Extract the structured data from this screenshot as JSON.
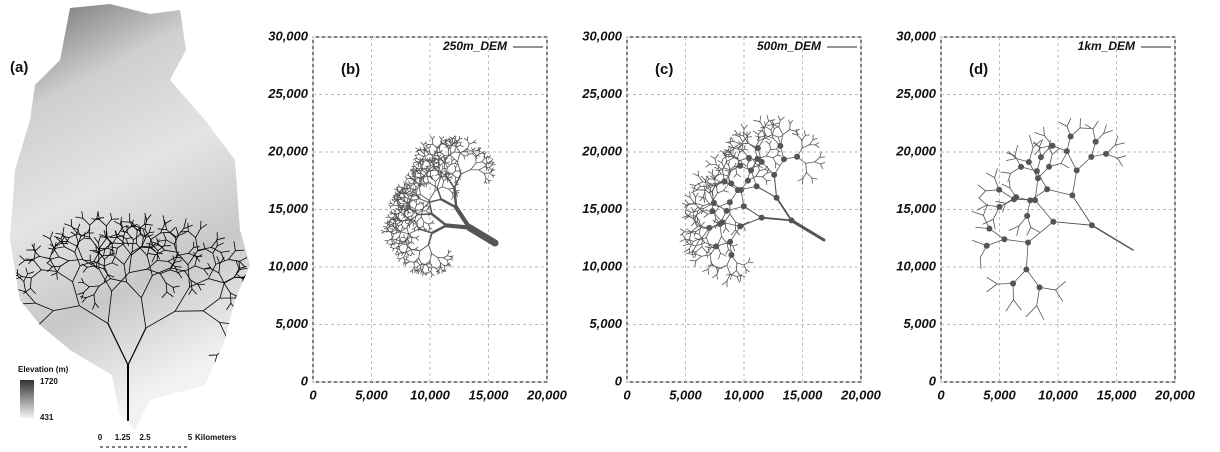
{
  "map": {
    "label": "(a)",
    "legend": {
      "title": "Elevation (m)",
      "max": 1720,
      "min": 431
    },
    "scale_bar": {
      "ticks": [
        0,
        1.25,
        2.5,
        5
      ],
      "unit": "Kilometers"
    }
  },
  "chart_data": [
    {
      "type": "network",
      "label": "(b)",
      "series": [
        {
          "name": "250m_DEM",
          "color": "#555555"
        }
      ],
      "xlim": [
        0,
        20000
      ],
      "ylim": [
        0,
        30000
      ],
      "grid": true,
      "xticks": [
        0,
        {
          "value": 5000,
          "label": "5,000"
        },
        {
          "value": 10000,
          "label": "10,000"
        },
        {
          "value": 15000,
          "label": "15,000"
        },
        {
          "value": 20000,
          "label": "20,000"
        }
      ],
      "yticks": [
        0,
        {
          "value": 5000,
          "label": "5,000"
        },
        {
          "value": 10000,
          "label": "10,000"
        },
        {
          "value": 15000,
          "label": "15,000"
        },
        {
          "value": 20000,
          "label": "20,000"
        },
        {
          "value": 25000,
          "label": "25,000"
        },
        {
          "value": 30000,
          "label": "30,000"
        }
      ]
    },
    {
      "type": "network",
      "label": "(c)",
      "series": [
        {
          "name": "500m_DEM",
          "color": "#555555"
        }
      ],
      "xlim": [
        0,
        20000
      ],
      "ylim": [
        0,
        30000
      ],
      "grid": true,
      "xticks": [
        0,
        {
          "value": 5000,
          "label": "5,000"
        },
        {
          "value": 10000,
          "label": "10,000"
        },
        {
          "value": 15000,
          "label": "15,000"
        },
        {
          "value": 20000,
          "label": "20,000"
        }
      ],
      "yticks": [
        0,
        {
          "value": 5000,
          "label": "5,000"
        },
        {
          "value": 10000,
          "label": "10,000"
        },
        {
          "value": 15000,
          "label": "15,000"
        },
        {
          "value": 20000,
          "label": "20,000"
        },
        {
          "value": 25000,
          "label": "25,000"
        },
        {
          "value": 30000,
          "label": "30,000"
        }
      ]
    },
    {
      "type": "network",
      "label": "(d)",
      "series": [
        {
          "name": "1km_DEM",
          "color": "#555555"
        }
      ],
      "xlim": [
        0,
        20000
      ],
      "ylim": [
        0,
        30000
      ],
      "grid": true,
      "xticks": [
        0,
        {
          "value": 5000,
          "label": "5,000"
        },
        {
          "value": 10000,
          "label": "10,000"
        },
        {
          "value": 15000,
          "label": "15,000"
        },
        {
          "value": 20000,
          "label": "20,000"
        }
      ],
      "yticks": [
        0,
        {
          "value": 5000,
          "label": "5,000"
        },
        {
          "value": 10000,
          "label": "10,000"
        },
        {
          "value": 15000,
          "label": "15,000"
        },
        {
          "value": 20000,
          "label": "20,000"
        },
        {
          "value": 25000,
          "label": "25,000"
        },
        {
          "value": 30000,
          "label": "30,000"
        }
      ]
    }
  ]
}
